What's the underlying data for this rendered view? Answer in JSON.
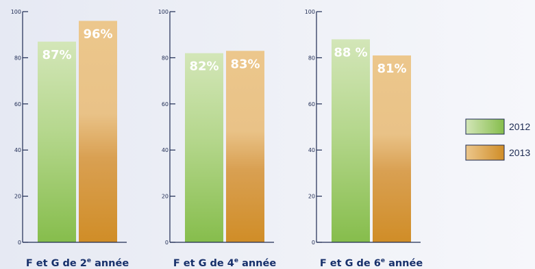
{
  "chart_data": {
    "type": "bar",
    "categories": [
      {
        "prefix": "F et G de 2",
        "sup": "e",
        "suffix": " année"
      },
      {
        "prefix": "F et G de 4",
        "sup": "e",
        "suffix": " année"
      },
      {
        "prefix": "F et G de 6",
        "sup": "e",
        "suffix": " année"
      }
    ],
    "series": [
      {
        "name": "2012",
        "values": [
          87,
          82,
          88
        ],
        "labels": [
          "87%",
          "82%",
          "88 %"
        ],
        "color": "#8fc45a"
      },
      {
        "name": "2013",
        "values": [
          96,
          83,
          81
        ],
        "labels": [
          "96%",
          "83%",
          "81%"
        ],
        "color": "#d49430"
      }
    ],
    "yticks": [
      "0",
      "20",
      "40",
      "60",
      "80",
      "100"
    ],
    "ylim": [
      0,
      100
    ],
    "axis_color": "#1d2a52",
    "legend_position": "right"
  }
}
